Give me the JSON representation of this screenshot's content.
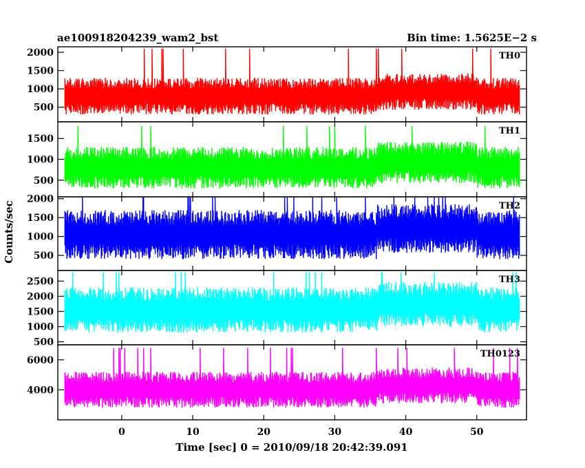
{
  "header": {
    "left_title": "ae100918204239_wam2_bst",
    "right_title": "Bin time: 1.5625E−2 s"
  },
  "chart_data": {
    "type": "line",
    "xlabel": "Time [sec] 0 = 2010/09/18 20:42:39.091",
    "ylabel": "Counts/sec",
    "xlim": [
      -9,
      57
    ],
    "x_ticks": [
      0,
      10,
      20,
      30,
      40,
      50
    ],
    "data_x_range": [
      -8,
      56
    ],
    "bin_time_s": 0.015625,
    "grid": false,
    "legend": "none",
    "panels": [
      {
        "name": "TH0",
        "color": "#ff0000",
        "ylim": [
          100,
          2150
        ],
        "y_ticks": [
          500,
          1000,
          1500,
          2000
        ],
        "typical_range": [
          300,
          1300
        ],
        "peak": 2100
      },
      {
        "name": "TH1",
        "color": "#00ff00",
        "ylim": [
          100,
          1900
        ],
        "y_ticks": [
          500,
          1000,
          1500
        ],
        "typical_range": [
          300,
          1300
        ],
        "peak": 1800
      },
      {
        "name": "TH2",
        "color": "#0000ff",
        "ylim": [
          100,
          2050
        ],
        "y_ticks": [
          500,
          1000,
          1500,
          2000
        ],
        "typical_range": [
          400,
          1700
        ],
        "peak": 2050
      },
      {
        "name": "TH3",
        "color": "#00ffff",
        "ylim": [
          400,
          2850
        ],
        "y_ticks": [
          500,
          1000,
          1500,
          2000,
          2500
        ],
        "typical_range": [
          800,
          2300
        ],
        "peak": 2800
      },
      {
        "name": "TH0123",
        "color": "#ff00ff",
        "ylim": [
          2000,
          7000
        ],
        "y_ticks": [
          4000,
          6000
        ],
        "typical_range": [
          2800,
          5200
        ],
        "peak": 6800
      }
    ]
  }
}
